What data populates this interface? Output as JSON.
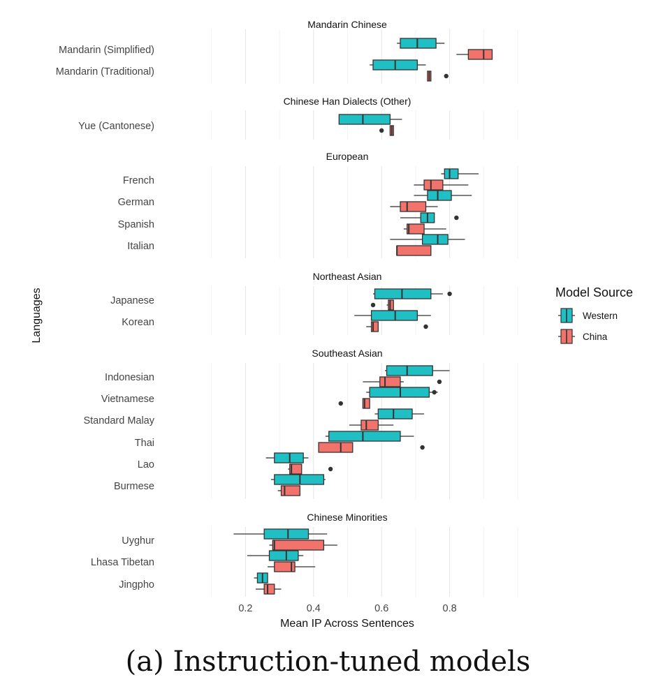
{
  "caption": "(a) Instruction-tuned models",
  "chart_data": {
    "type": "boxplot",
    "orientation": "horizontal",
    "xlabel": "Mean IP Across Sentences",
    "ylabel": "Languages",
    "x_ticks": [
      0.2,
      0.4,
      0.6,
      0.8
    ],
    "x_tick_labels": [
      "0.2",
      "0.4",
      "0.6",
      "0.8"
    ],
    "xlim": [
      0.0,
      1.0
    ],
    "grid": true,
    "legend": {
      "title": "Model Source",
      "position": "right",
      "entries": [
        {
          "name": "Western",
          "color": "#1FBFC3"
        },
        {
          "name": "China",
          "color": "#F2736C"
        }
      ]
    },
    "panels": [
      {
        "title": "Mandarin Chinese",
        "languages": [
          {
            "name": "Mandarin (Simplified)",
            "western": {
              "min": 0.645,
              "q1": 0.655,
              "median": 0.705,
              "q3": 0.76,
              "max": 0.785,
              "outliers": []
            },
            "china": {
              "min": 0.82,
              "q1": 0.855,
              "median": 0.9,
              "q3": 0.925,
              "max": 0.925,
              "outliers": []
            }
          },
          {
            "name": "Mandarin (Traditional)",
            "western": {
              "min": 0.565,
              "q1": 0.575,
              "median": 0.64,
              "q3": 0.705,
              "max": 0.73,
              "outliers": []
            },
            "china": {
              "min": 0.735,
              "q1": 0.735,
              "median": 0.74,
              "q3": 0.745,
              "max": 0.745,
              "outliers": [
                0.79
              ]
            }
          }
        ]
      },
      {
        "title": "Chinese Han Dialects (Other)",
        "languages": [
          {
            "name": "Yue (Cantonese)",
            "western": {
              "min": 0.475,
              "q1": 0.475,
              "median": 0.545,
              "q3": 0.625,
              "max": 0.66,
              "outliers": []
            },
            "china": {
              "min": 0.625,
              "q1": 0.625,
              "median": 0.63,
              "q3": 0.635,
              "max": 0.635,
              "outliers": [
                0.6
              ]
            }
          }
        ]
      },
      {
        "title": "European",
        "languages": [
          {
            "name": "French",
            "western": {
              "min": 0.775,
              "q1": 0.785,
              "median": 0.8,
              "q3": 0.825,
              "max": 0.885,
              "outliers": []
            },
            "china": {
              "min": 0.695,
              "q1": 0.725,
              "median": 0.745,
              "q3": 0.78,
              "max": 0.855,
              "outliers": []
            }
          },
          {
            "name": "German",
            "western": {
              "min": 0.695,
              "q1": 0.735,
              "median": 0.765,
              "q3": 0.805,
              "max": 0.865,
              "outliers": []
            },
            "china": {
              "min": 0.625,
              "q1": 0.655,
              "median": 0.675,
              "q3": 0.73,
              "max": 0.765,
              "outliers": []
            }
          },
          {
            "name": "Spanish",
            "western": {
              "min": 0.655,
              "q1": 0.715,
              "median": 0.735,
              "q3": 0.755,
              "max": 0.755,
              "outliers": [
                0.82
              ]
            },
            "china": {
              "min": 0.665,
              "q1": 0.675,
              "median": 0.68,
              "q3": 0.725,
              "max": 0.79,
              "outliers": []
            }
          },
          {
            "name": "Italian",
            "western": {
              "min": 0.625,
              "q1": 0.72,
              "median": 0.765,
              "q3": 0.795,
              "max": 0.845,
              "outliers": []
            },
            "china": {
              "min": 0.645,
              "q1": 0.645,
              "median": 0.645,
              "q3": 0.745,
              "max": 0.745,
              "outliers": []
            }
          }
        ]
      },
      {
        "title": "Northeast Asian",
        "languages": [
          {
            "name": "Japanese",
            "western": {
              "min": 0.575,
              "q1": 0.58,
              "median": 0.66,
              "q3": 0.745,
              "max": 0.78,
              "outliers": [
                0.8
              ]
            },
            "china": {
              "min": 0.615,
              "q1": 0.62,
              "median": 0.625,
              "q3": 0.635,
              "max": 0.635,
              "outliers": [
                0.575
              ]
            }
          },
          {
            "name": "Korean",
            "western": {
              "min": 0.52,
              "q1": 0.57,
              "median": 0.64,
              "q3": 0.705,
              "max": 0.745,
              "outliers": []
            },
            "china": {
              "min": 0.555,
              "q1": 0.57,
              "median": 0.575,
              "q3": 0.59,
              "max": 0.59,
              "outliers": [
                0.73
              ]
            }
          }
        ]
      },
      {
        "title": "Southeast Asian",
        "languages": [
          {
            "name": "Indonesian",
            "western": {
              "min": 0.61,
              "q1": 0.615,
              "median": 0.675,
              "q3": 0.75,
              "max": 0.8,
              "outliers": []
            },
            "china": {
              "min": 0.545,
              "q1": 0.595,
              "median": 0.61,
              "q3": 0.655,
              "max": 0.665,
              "outliers": [
                0.77
              ]
            }
          },
          {
            "name": "Vietnamese",
            "western": {
              "min": 0.555,
              "q1": 0.565,
              "median": 0.655,
              "q3": 0.74,
              "max": 0.765,
              "outliers": [
                0.755
              ]
            },
            "china": {
              "min": 0.545,
              "q1": 0.545,
              "median": 0.55,
              "q3": 0.565,
              "max": 0.565,
              "outliers": [
                0.48
              ]
            }
          },
          {
            "name": "Standard Malay",
            "western": {
              "min": 0.58,
              "q1": 0.59,
              "median": 0.635,
              "q3": 0.69,
              "max": 0.725,
              "outliers": []
            },
            "china": {
              "min": 0.505,
              "q1": 0.54,
              "median": 0.555,
              "q3": 0.59,
              "max": 0.635,
              "outliers": []
            }
          },
          {
            "name": "Thai",
            "western": {
              "min": 0.435,
              "q1": 0.445,
              "median": 0.545,
              "q3": 0.655,
              "max": 0.695,
              "outliers": []
            },
            "china": {
              "min": 0.415,
              "q1": 0.415,
              "median": 0.48,
              "q3": 0.515,
              "max": 0.515,
              "outliers": [
                0.72
              ]
            }
          },
          {
            "name": "Lao",
            "western": {
              "min": 0.26,
              "q1": 0.285,
              "median": 0.33,
              "q3": 0.37,
              "max": 0.385,
              "outliers": []
            },
            "china": {
              "min": 0.325,
              "q1": 0.33,
              "median": 0.335,
              "q3": 0.365,
              "max": 0.365,
              "outliers": [
                0.45
              ]
            }
          },
          {
            "name": "Burmese",
            "western": {
              "min": 0.275,
              "q1": 0.285,
              "median": 0.36,
              "q3": 0.43,
              "max": 0.435,
              "outliers": []
            },
            "china": {
              "min": 0.295,
              "q1": 0.305,
              "median": 0.315,
              "q3": 0.36,
              "max": 0.36,
              "outliers": []
            }
          }
        ]
      },
      {
        "title": "Chinese Minorities",
        "languages": [
          {
            "name": "Uyghur",
            "western": {
              "min": 0.165,
              "q1": 0.255,
              "median": 0.325,
              "q3": 0.385,
              "max": 0.44,
              "outliers": []
            },
            "china": {
              "min": 0.27,
              "q1": 0.28,
              "median": 0.285,
              "q3": 0.43,
              "max": 0.47,
              "outliers": []
            }
          },
          {
            "name": "Lhasa Tibetan",
            "western": {
              "min": 0.205,
              "q1": 0.27,
              "median": 0.32,
              "q3": 0.355,
              "max": 0.37,
              "outliers": []
            },
            "china": {
              "min": 0.265,
              "q1": 0.285,
              "median": 0.335,
              "q3": 0.345,
              "max": 0.405,
              "outliers": []
            }
          },
          {
            "name": "Jingpho",
            "western": {
              "min": 0.225,
              "q1": 0.235,
              "median": 0.25,
              "q3": 0.265,
              "max": 0.265,
              "outliers": []
            },
            "china": {
              "min": 0.23,
              "q1": 0.255,
              "median": 0.265,
              "q3": 0.285,
              "max": 0.305,
              "outliers": []
            }
          }
        ]
      }
    ]
  }
}
